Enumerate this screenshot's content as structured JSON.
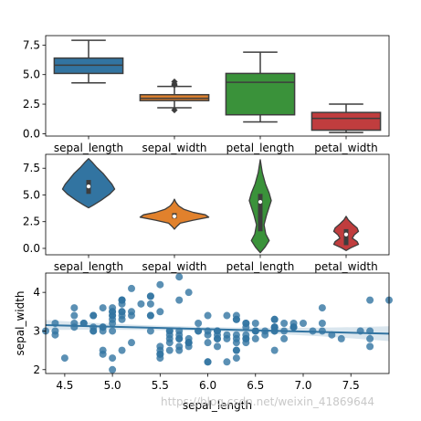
{
  "chart_data": [
    {
      "type": "box",
      "categories": [
        "sepal_length",
        "sepal_width",
        "petal_length",
        "petal_width"
      ],
      "stats": [
        {
          "q1": 5.1,
          "median": 5.8,
          "q3": 6.4,
          "whislo": 4.3,
          "whishi": 7.9,
          "fliers": []
        },
        {
          "q1": 2.8,
          "median": 3.0,
          "q3": 3.3,
          "whislo": 2.2,
          "whishi": 4.0,
          "fliers": [
            2.0,
            4.1,
            4.2,
            4.4
          ]
        },
        {
          "q1": 1.6,
          "median": 4.35,
          "q3": 5.1,
          "whislo": 1.0,
          "whishi": 6.9,
          "fliers": []
        },
        {
          "q1": 0.3,
          "median": 1.3,
          "q3": 1.8,
          "whislo": 0.1,
          "whishi": 2.5,
          "fliers": []
        }
      ],
      "colors": [
        "#3274a1",
        "#e1812c",
        "#3a923a",
        "#c03d3e"
      ],
      "ylim": [
        -0.2,
        8.3
      ],
      "yticks": [
        0.0,
        2.5,
        5.0,
        7.5
      ],
      "ytick_labels": [
        "0.0",
        "2.5",
        "5.0",
        "7.5"
      ],
      "xlabel": "",
      "ylabel": ""
    },
    {
      "type": "violin",
      "categories": [
        "sepal_length",
        "sepal_width",
        "petal_length",
        "petal_width"
      ],
      "stats": [
        {
          "min": 3.8,
          "max": 8.4,
          "q1": 5.1,
          "median": 5.8,
          "q3": 6.4
        },
        {
          "min": 1.8,
          "max": 4.6,
          "q1": 2.8,
          "median": 3.0,
          "q3": 3.3
        },
        {
          "min": -0.4,
          "max": 8.3,
          "q1": 1.6,
          "median": 4.35,
          "q3": 5.1
        },
        {
          "min": -0.2,
          "max": 3.0,
          "q1": 0.3,
          "median": 1.3,
          "q3": 1.8
        }
      ],
      "colors": [
        "#3274a1",
        "#e1812c",
        "#3a923a",
        "#c03d3e"
      ],
      "ylim": [
        -0.6,
        8.8
      ],
      "yticks": [
        0.0,
        2.5,
        5.0,
        7.5
      ],
      "ytick_labels": [
        "0.0",
        "2.5",
        "5.0",
        "7.5"
      ],
      "xlabel": "",
      "ylabel": ""
    },
    {
      "type": "scatter",
      "xlabel": "sepal_length",
      "ylabel": "sepal_width",
      "xlim": [
        4.3,
        7.9
      ],
      "ylim": [
        1.9,
        4.5
      ],
      "xticks": [
        4.5,
        5.0,
        5.5,
        6.0,
        6.5,
        7.0,
        7.5
      ],
      "xtick_labels": [
        "4.5",
        "5.0",
        "5.5",
        "6.0",
        "6.5",
        "7.0",
        "7.5"
      ],
      "yticks": [
        2,
        3,
        4
      ],
      "ytick_labels": [
        "2",
        "3",
        "4"
      ],
      "color": "#3274a1",
      "regression": {
        "intercept": 3.42,
        "slope": -0.062
      },
      "points": [
        [
          5.1,
          3.5
        ],
        [
          4.9,
          3.0
        ],
        [
          4.7,
          3.2
        ],
        [
          4.6,
          3.1
        ],
        [
          5.0,
          3.6
        ],
        [
          5.4,
          3.9
        ],
        [
          4.6,
          3.4
        ],
        [
          5.0,
          3.4
        ],
        [
          4.4,
          2.9
        ],
        [
          4.9,
          3.1
        ],
        [
          5.4,
          3.7
        ],
        [
          4.8,
          3.4
        ],
        [
          4.8,
          3.0
        ],
        [
          4.3,
          3.0
        ],
        [
          5.8,
          4.0
        ],
        [
          5.7,
          4.4
        ],
        [
          5.4,
          3.9
        ],
        [
          5.1,
          3.5
        ],
        [
          5.7,
          3.8
        ],
        [
          5.1,
          3.8
        ],
        [
          5.4,
          3.4
        ],
        [
          5.1,
          3.7
        ],
        [
          4.6,
          3.6
        ],
        [
          5.1,
          3.3
        ],
        [
          4.8,
          3.4
        ],
        [
          5.0,
          3.0
        ],
        [
          5.0,
          3.4
        ],
        [
          5.2,
          3.5
        ],
        [
          5.2,
          3.4
        ],
        [
          4.7,
          3.2
        ],
        [
          4.8,
          3.1
        ],
        [
          5.4,
          3.4
        ],
        [
          5.2,
          4.1
        ],
        [
          5.5,
          4.2
        ],
        [
          4.9,
          3.1
        ],
        [
          5.0,
          3.2
        ],
        [
          5.5,
          3.5
        ],
        [
          4.9,
          3.6
        ],
        [
          4.4,
          3.0
        ],
        [
          5.1,
          3.4
        ],
        [
          5.0,
          3.5
        ],
        [
          4.5,
          2.3
        ],
        [
          4.4,
          3.2
        ],
        [
          5.0,
          3.5
        ],
        [
          5.1,
          3.8
        ],
        [
          4.8,
          3.0
        ],
        [
          5.1,
          3.8
        ],
        [
          4.6,
          3.2
        ],
        [
          5.3,
          3.7
        ],
        [
          5.0,
          3.3
        ],
        [
          7.0,
          3.2
        ],
        [
          6.4,
          3.2
        ],
        [
          6.9,
          3.1
        ],
        [
          5.5,
          2.3
        ],
        [
          6.5,
          2.8
        ],
        [
          5.7,
          2.8
        ],
        [
          6.3,
          3.3
        ],
        [
          4.9,
          2.4
        ],
        [
          6.6,
          2.9
        ],
        [
          5.2,
          2.7
        ],
        [
          5.0,
          2.0
        ],
        [
          5.9,
          3.0
        ],
        [
          6.0,
          2.2
        ],
        [
          6.1,
          2.9
        ],
        [
          5.6,
          2.9
        ],
        [
          6.7,
          3.1
        ],
        [
          5.6,
          3.0
        ],
        [
          5.8,
          2.7
        ],
        [
          6.2,
          2.2
        ],
        [
          5.6,
          2.5
        ],
        [
          5.9,
          3.2
        ],
        [
          6.1,
          2.8
        ],
        [
          6.3,
          2.5
        ],
        [
          6.1,
          2.8
        ],
        [
          6.4,
          2.9
        ],
        [
          6.6,
          3.0
        ],
        [
          6.8,
          2.8
        ],
        [
          6.7,
          3.0
        ],
        [
          6.0,
          2.9
        ],
        [
          5.7,
          2.6
        ],
        [
          5.5,
          2.4
        ],
        [
          5.5,
          2.4
        ],
        [
          5.8,
          2.7
        ],
        [
          6.0,
          2.7
        ],
        [
          5.4,
          3.0
        ],
        [
          6.0,
          3.4
        ],
        [
          6.7,
          3.1
        ],
        [
          6.3,
          2.3
        ],
        [
          5.6,
          3.0
        ],
        [
          5.5,
          2.5
        ],
        [
          5.5,
          2.6
        ],
        [
          6.1,
          3.0
        ],
        [
          5.8,
          2.6
        ],
        [
          5.0,
          2.3
        ],
        [
          5.6,
          2.7
        ],
        [
          5.7,
          3.0
        ],
        [
          5.7,
          2.9
        ],
        [
          6.2,
          2.9
        ],
        [
          5.1,
          2.5
        ],
        [
          5.7,
          2.8
        ],
        [
          6.3,
          3.3
        ],
        [
          5.8,
          2.7
        ],
        [
          7.1,
          3.0
        ],
        [
          6.3,
          2.9
        ],
        [
          6.5,
          3.0
        ],
        [
          7.6,
          3.0
        ],
        [
          4.9,
          2.5
        ],
        [
          7.3,
          2.9
        ],
        [
          6.7,
          2.5
        ],
        [
          7.2,
          3.6
        ],
        [
          6.5,
          3.2
        ],
        [
          6.4,
          2.7
        ],
        [
          6.8,
          3.0
        ],
        [
          5.7,
          2.5
        ],
        [
          5.8,
          2.8
        ],
        [
          6.4,
          3.2
        ],
        [
          6.5,
          3.0
        ],
        [
          7.7,
          3.8
        ],
        [
          7.7,
          2.6
        ],
        [
          6.0,
          2.2
        ],
        [
          6.9,
          3.2
        ],
        [
          5.6,
          2.8
        ],
        [
          7.7,
          2.8
        ],
        [
          6.3,
          2.7
        ],
        [
          6.7,
          3.3
        ],
        [
          7.2,
          3.2
        ],
        [
          6.2,
          2.8
        ],
        [
          6.1,
          3.0
        ],
        [
          6.4,
          2.8
        ],
        [
          7.2,
          3.0
        ],
        [
          7.4,
          2.8
        ],
        [
          7.9,
          3.8
        ],
        [
          6.4,
          2.8
        ],
        [
          6.3,
          2.8
        ],
        [
          6.1,
          2.6
        ],
        [
          7.7,
          3.0
        ],
        [
          6.3,
          3.4
        ],
        [
          6.4,
          3.1
        ],
        [
          6.0,
          3.0
        ],
        [
          6.9,
          3.1
        ],
        [
          6.7,
          3.1
        ],
        [
          6.9,
          3.1
        ],
        [
          5.8,
          2.7
        ],
        [
          6.8,
          3.2
        ],
        [
          6.7,
          3.3
        ],
        [
          6.7,
          3.0
        ],
        [
          6.3,
          2.5
        ],
        [
          6.5,
          3.0
        ],
        [
          6.2,
          3.4
        ],
        [
          5.9,
          3.0
        ]
      ]
    }
  ],
  "watermark": "https://blog.csdn.net/weixin_41869644"
}
